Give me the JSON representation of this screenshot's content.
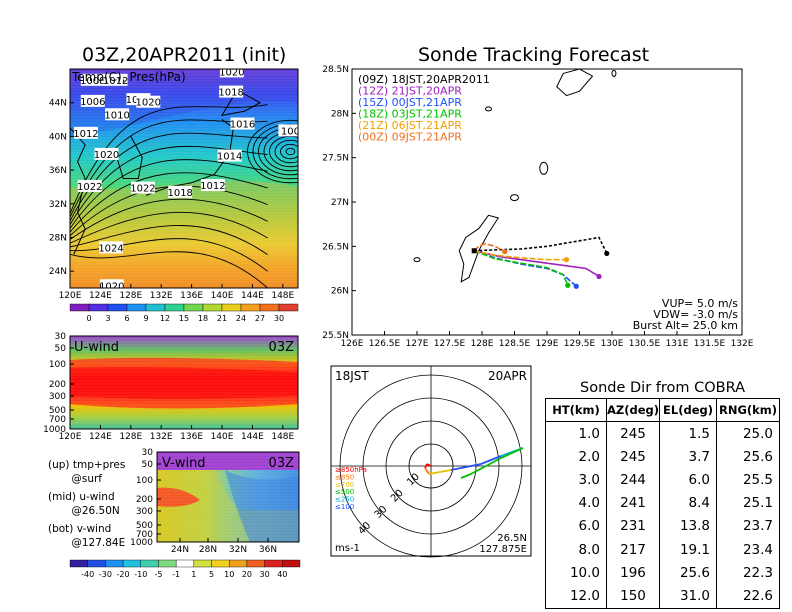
{
  "left_title": "03Z,20APR2011 (init)",
  "right_title": "Sonde Tracking Forecast",
  "chart_data": [
    {
      "type": "heatmap",
      "name": "map",
      "title": "Temp(C), Pres(hPa)",
      "xticks": [
        "120E",
        "124E",
        "128E",
        "132E",
        "136E",
        "140E",
        "144E",
        "148E"
      ],
      "yticks": [
        "24N",
        "28N",
        "32N",
        "36N",
        "40N",
        "44N"
      ],
      "xlim": [
        120,
        150
      ],
      "ylim": [
        22,
        48
      ],
      "pressure_labels": [
        {
          "text": "1020",
          "lon": 141.3,
          "lat": 47.6
        },
        {
          "text": "1018",
          "lon": 141.2,
          "lat": 45.2
        },
        {
          "text": "1016",
          "lon": 142.7,
          "lat": 41.4
        },
        {
          "text": "1014",
          "lon": 141.0,
          "lat": 37.6
        },
        {
          "text": "1012",
          "lon": 138.8,
          "lat": 34.1
        },
        {
          "text": "1018",
          "lon": 134.5,
          "lat": 33.3
        },
        {
          "text": "1022",
          "lon": 129.6,
          "lat": 33.8
        },
        {
          "text": "1022",
          "lon": 122.6,
          "lat": 34.0
        },
        {
          "text": "1020",
          "lon": 124.8,
          "lat": 37.8
        },
        {
          "text": "1012",
          "lon": 122.1,
          "lat": 40.3
        },
        {
          "text": "1010",
          "lon": 126.2,
          "lat": 42.5
        },
        {
          "text": "1006",
          "lon": 123.0,
          "lat": 44.1
        },
        {
          "text": "1008",
          "lon": 123.0,
          "lat": 46.6
        },
        {
          "text": "1012",
          "lon": 126.0,
          "lat": 46.6
        },
        {
          "text": "1010",
          "lon": 129.0,
          "lat": 44.3
        },
        {
          "text": "1020",
          "lon": 130.3,
          "lat": 44.0
        },
        {
          "text": "1024",
          "lon": 125.4,
          "lat": 26.7
        },
        {
          "text": "1020",
          "lon": 125.5,
          "lat": 22.2
        },
        {
          "text": "100",
          "lon": 149.0,
          "lat": 40.6
        }
      ],
      "colorbar": [
        "0",
        "3",
        "6",
        "9",
        "12",
        "15",
        "18",
        "21",
        "24",
        "27",
        "30"
      ]
    },
    {
      "type": "heatmap",
      "name": "u-wind",
      "label": "U-wind",
      "time": "03Z",
      "yticks": [
        "30",
        "50",
        "100",
        "200",
        "300",
        "500",
        "700",
        "1000"
      ],
      "xticks": [
        "120E",
        "124E",
        "128E",
        "132E",
        "136E",
        "140E",
        "144E",
        "148E"
      ]
    },
    {
      "type": "heatmap",
      "name": "v-wind",
      "label": "V-wind",
      "time": "03Z",
      "yticks": [
        "30",
        "50",
        "100",
        "200",
        "300",
        "500",
        "700",
        "1000"
      ],
      "xticks": [
        "24N",
        "28N",
        "32N",
        "36N"
      ],
      "colorbar": [
        "-40",
        "-30",
        "-20",
        "-10",
        "-5",
        "-1",
        "1",
        "5",
        "10",
        "20",
        "30",
        "40"
      ]
    },
    {
      "type": "line",
      "name": "sonde-tracks",
      "xticks": [
        "126E",
        "126.5E",
        "127E",
        "127.5E",
        "128E",
        "128.5E",
        "129E",
        "129.5E",
        "130E",
        "130.5E",
        "131E",
        "131.5E",
        "132E"
      ],
      "yticks": [
        "25.5N",
        "26N",
        "26.5N",
        "27N",
        "27.5N",
        "28N",
        "28.5N"
      ],
      "xlim": [
        126,
        132
      ],
      "ylim": [
        25.5,
        28.5
      ],
      "legend_position": "top-left",
      "series": [
        {
          "name": "(09Z)  18JST,20APR2011",
          "color": "#000000",
          "x": [
            127.88,
            128.2,
            128.6,
            129.0,
            129.4,
            129.8,
            129.92
          ],
          "y": [
            26.45,
            26.46,
            26.47,
            26.5,
            26.55,
            26.6,
            26.42
          ]
        },
        {
          "name": "(12Z)  21JST,20APR",
          "color": "#a020c0",
          "x": [
            127.88,
            128.3,
            128.8,
            129.3,
            129.6,
            129.8
          ],
          "y": [
            26.45,
            26.38,
            26.33,
            26.28,
            26.25,
            26.16
          ]
        },
        {
          "name": "(15Z)  00JST,21APR",
          "color": "#2050ff",
          "x": [
            127.88,
            128.2,
            128.6,
            129.0,
            129.25,
            129.45
          ],
          "y": [
            26.45,
            26.37,
            26.3,
            26.25,
            26.18,
            26.05
          ]
        },
        {
          "name": "(18Z)  03JST,21APR",
          "color": "#00c000",
          "x": [
            127.88,
            128.2,
            128.6,
            129.0,
            129.25,
            129.32
          ],
          "y": [
            26.45,
            26.36,
            26.31,
            26.26,
            26.18,
            26.06
          ]
        },
        {
          "name": "(21Z)  06JST,21APR",
          "color": "#f0a000",
          "x": [
            127.88,
            128.2,
            128.6,
            129.0,
            129.3
          ],
          "y": [
            26.45,
            26.4,
            26.37,
            26.35,
            26.35
          ]
        },
        {
          "name": "(00Z)  09JST,21APR",
          "color": "#f07020",
          "x": [
            127.88,
            127.95,
            128.05,
            128.2,
            128.35
          ],
          "y": [
            26.45,
            26.5,
            26.53,
            26.5,
            26.44
          ]
        }
      ],
      "params": [
        "VUP= 5.0 m/s",
        "VDW= -3.0 m/s",
        "Burst Alt= 25.0 km"
      ]
    },
    {
      "type": "scatter",
      "name": "hodograph",
      "left_label": "18JST",
      "right_label": "20APR",
      "units": "ms-1",
      "location": [
        "26.5N",
        "127.875E"
      ],
      "ring_labels": [
        "10",
        "20",
        "30",
        "40"
      ],
      "legend": [
        {
          "text": "≥850hPa",
          "color": "#ff0000"
        },
        {
          "text": "≤850",
          "color": "#ff7a00"
        },
        {
          "text": "≤700",
          "color": "#e8c000"
        },
        {
          "text": "≤500",
          "color": "#00c000"
        },
        {
          "text": "≤250",
          "color": "#00b0e0"
        },
        {
          "text": "≤100",
          "color": "#2050ff"
        }
      ]
    },
    {
      "type": "table",
      "name": "sonde-dir",
      "title": "Sonde Dir from COBRA",
      "columns": [
        "HT(km)",
        "AZ(deg)",
        "EL(deg)",
        "RNG(km)"
      ],
      "rows": [
        [
          "1.0",
          "245",
          "1.5",
          "25.0"
        ],
        [
          "2.0",
          "245",
          "3.7",
          "25.6"
        ],
        [
          "3.0",
          "244",
          "6.0",
          "25.5"
        ],
        [
          "4.0",
          "241",
          "8.4",
          "25.1"
        ],
        [
          "6.0",
          "231",
          "13.8",
          "23.7"
        ],
        [
          "8.0",
          "217",
          "19.1",
          "23.4"
        ],
        [
          "10.0",
          "196",
          "25.6",
          "22.3"
        ],
        [
          "12.0",
          "150",
          "31.0",
          "22.6"
        ]
      ]
    }
  ],
  "notes": {
    "up": "(up) tmp+pres\n       @surf",
    "mid": "(mid) u-wind\n       @26.50N",
    "bot": "(bot) v-wind\n       @127.84E"
  }
}
